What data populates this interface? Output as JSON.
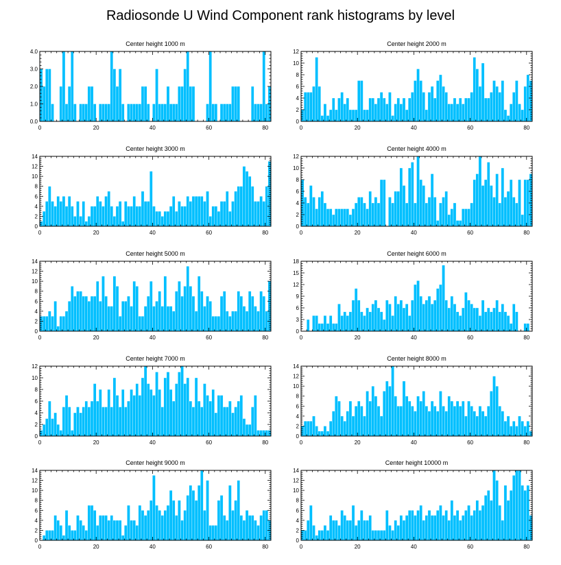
{
  "figure": {
    "title": "Radiosonde U Wind Component rank histograms by level",
    "bar_color": "#00bfff",
    "frame_color": "#000000"
  },
  "chart_data": [
    {
      "type": "bar",
      "title": "Center height 1000 m",
      "xlim": [
        0,
        82
      ],
      "ylim": [
        0,
        4
      ],
      "x_ticks": [
        0,
        20,
        40,
        60,
        80
      ],
      "x_tick_labels": [
        "0",
        "20",
        "40",
        "60",
        "80"
      ],
      "y_ticks": [
        0,
        1,
        2,
        3,
        4
      ],
      "y_tick_labels": [
        "0.0",
        "1.0",
        "2.0",
        "3.0",
        "4.0"
      ],
      "values": [
        3,
        2,
        3,
        3,
        1,
        0,
        0,
        2,
        4,
        1,
        2,
        4,
        1,
        0,
        1,
        1,
        1,
        2,
        2,
        1,
        0,
        1,
        1,
        1,
        1,
        4,
        3,
        2,
        3,
        1,
        0,
        1,
        1,
        1,
        1,
        1,
        2,
        2,
        1,
        0,
        1,
        3,
        1,
        1,
        1,
        2,
        1,
        1,
        1,
        2,
        2,
        3,
        4,
        2,
        2,
        0,
        0,
        0,
        0,
        1,
        4,
        1,
        1,
        0,
        1,
        1,
        1,
        1,
        2,
        2,
        2,
        0,
        0,
        0,
        0,
        2,
        1,
        1,
        1,
        4,
        1,
        2
      ]
    },
    {
      "type": "bar",
      "title": "Center height 2000 m",
      "xlim": [
        0,
        82
      ],
      "ylim": [
        0,
        12
      ],
      "x_ticks": [
        0,
        20,
        40,
        60,
        80
      ],
      "x_tick_labels": [
        "0",
        "20",
        "40",
        "60",
        "80"
      ],
      "y_ticks": [
        0,
        2,
        4,
        6,
        8,
        10,
        12
      ],
      "y_tick_labels": [
        "0",
        "2",
        "4",
        "6",
        "8",
        "10",
        "12"
      ],
      "values": [
        2,
        5,
        5,
        5,
        6,
        11,
        6,
        1,
        3,
        1,
        2,
        4,
        2,
        4,
        5,
        3,
        4,
        2,
        2,
        2,
        7,
        7,
        2,
        2,
        4,
        4,
        3,
        4,
        5,
        4,
        3,
        5,
        1,
        3,
        4,
        3,
        4,
        2,
        4,
        5,
        7,
        9,
        7,
        5,
        2,
        5,
        6,
        4,
        7,
        8,
        6,
        5,
        3,
        3,
        4,
        3,
        4,
        3,
        4,
        4,
        5,
        11,
        9,
        6,
        10,
        4,
        4,
        5,
        7,
        6,
        5,
        7,
        2,
        1,
        3,
        5,
        7,
        3,
        2,
        6,
        8,
        7
      ]
    },
    {
      "type": "bar",
      "title": "Center height 3000 m",
      "xlim": [
        0,
        82
      ],
      "ylim": [
        0,
        14
      ],
      "x_ticks": [
        0,
        20,
        40,
        60,
        80
      ],
      "x_tick_labels": [
        "0",
        "20",
        "40",
        "60",
        "80"
      ],
      "y_ticks": [
        0,
        2,
        4,
        6,
        8,
        10,
        12,
        14
      ],
      "y_tick_labels": [
        "0",
        "2",
        "4",
        "6",
        "8",
        "10",
        "12",
        "14"
      ],
      "values": [
        1,
        3,
        5,
        8,
        5,
        4,
        6,
        5,
        6,
        4,
        6,
        4,
        2,
        5,
        2,
        5,
        1,
        2,
        4,
        4,
        6,
        5,
        4,
        6,
        7,
        4,
        2,
        4,
        5,
        1,
        5,
        4,
        4,
        6,
        4,
        4,
        7,
        5,
        5,
        11,
        4,
        3,
        3,
        2,
        3,
        3,
        4,
        6,
        3,
        5,
        4,
        4,
        6,
        5,
        6,
        6,
        6,
        6,
        5,
        7,
        2,
        4,
        4,
        3,
        5,
        5,
        7,
        3,
        5,
        7,
        8,
        8,
        12,
        11,
        10,
        8,
        5,
        5,
        6,
        5,
        8,
        13
      ]
    },
    {
      "type": "bar",
      "title": "Center height 4000 m",
      "xlim": [
        0,
        82
      ],
      "ylim": [
        0,
        12
      ],
      "x_ticks": [
        0,
        20,
        40,
        60,
        80
      ],
      "x_tick_labels": [
        "0",
        "20",
        "40",
        "60",
        "80"
      ],
      "y_ticks": [
        0,
        2,
        4,
        6,
        8,
        10,
        12
      ],
      "y_tick_labels": [
        "0",
        "2",
        "4",
        "6",
        "8",
        "10",
        "12"
      ],
      "values": [
        8,
        5,
        4,
        7,
        5,
        3,
        5,
        6,
        4,
        3,
        3,
        2,
        3,
        3,
        3,
        3,
        3,
        2,
        3,
        4,
        5,
        5,
        4,
        3,
        6,
        4,
        5,
        4,
        8,
        8,
        0,
        5,
        4,
        6,
        6,
        10,
        7,
        4,
        10,
        11,
        4,
        12,
        8,
        7,
        4,
        5,
        9,
        5,
        1,
        4,
        5,
        6,
        2,
        3,
        4,
        1,
        1,
        3,
        3,
        3,
        4,
        8,
        9,
        12,
        7,
        8,
        11,
        7,
        5,
        9,
        4,
        10,
        5,
        6,
        8,
        5,
        4,
        8,
        2,
        8,
        8,
        9
      ]
    },
    {
      "type": "bar",
      "title": "Center height 5000 m",
      "xlim": [
        0,
        82
      ],
      "ylim": [
        0,
        14
      ],
      "x_ticks": [
        0,
        20,
        40,
        60,
        80
      ],
      "x_tick_labels": [
        "0",
        "20",
        "40",
        "60",
        "80"
      ],
      "y_ticks": [
        0,
        2,
        4,
        6,
        8,
        10,
        12,
        14
      ],
      "y_tick_labels": [
        "0",
        "2",
        "4",
        "6",
        "8",
        "10",
        "12",
        "14"
      ],
      "values": [
        3,
        3,
        3,
        4,
        3,
        6,
        1,
        3,
        3,
        4,
        6,
        9,
        7,
        8,
        8,
        7,
        7,
        6,
        7,
        7,
        10,
        6,
        11,
        7,
        5,
        5,
        11,
        9,
        3,
        6,
        6,
        7,
        5,
        10,
        9,
        3,
        3,
        5,
        7,
        10,
        5,
        6,
        8,
        5,
        11,
        5,
        5,
        4,
        8,
        10,
        7,
        9,
        13,
        9,
        7,
        4,
        11,
        8,
        5,
        7,
        6,
        3,
        3,
        3,
        7,
        8,
        4,
        3,
        4,
        4,
        8,
        7,
        5,
        4,
        8,
        7,
        5,
        4,
        8,
        7,
        4,
        10
      ]
    },
    {
      "type": "bar",
      "title": "Center height 6000 m",
      "xlim": [
        0,
        82
      ],
      "ylim": [
        0,
        18
      ],
      "x_ticks": [
        0,
        20,
        40,
        60,
        80
      ],
      "x_tick_labels": [
        "0",
        "20",
        "40",
        "60",
        "80"
      ],
      "y_ticks": [
        0,
        3,
        6,
        9,
        12,
        15,
        18
      ],
      "y_tick_labels": [
        "0",
        "3",
        "6",
        "9",
        "12",
        "15",
        "18"
      ],
      "values": [
        0,
        0,
        3,
        0,
        4,
        4,
        2,
        2,
        4,
        2,
        4,
        2,
        2,
        7,
        4,
        5,
        4,
        5,
        8,
        11,
        8,
        5,
        4,
        6,
        5,
        7,
        8,
        6,
        5,
        3,
        8,
        7,
        4,
        9,
        7,
        8,
        6,
        7,
        4,
        8,
        12,
        13,
        9,
        7,
        8,
        9,
        7,
        8,
        11,
        12,
        17,
        8,
        6,
        9,
        7,
        5,
        4,
        6,
        10,
        8,
        7,
        6,
        6,
        4,
        8,
        5,
        6,
        5,
        6,
        8,
        5,
        7,
        5,
        4,
        2,
        7,
        5,
        0,
        0,
        2,
        2,
        0
      ]
    },
    {
      "type": "bar",
      "title": "Center height 7000 m",
      "xlim": [
        0,
        82
      ],
      "ylim": [
        0,
        12
      ],
      "x_ticks": [
        0,
        20,
        40,
        60,
        80
      ],
      "x_tick_labels": [
        "0",
        "20",
        "40",
        "60",
        "80"
      ],
      "y_ticks": [
        0,
        2,
        4,
        6,
        8,
        10,
        12
      ],
      "y_tick_labels": [
        "0",
        "2",
        "4",
        "6",
        "8",
        "10",
        "12"
      ],
      "values": [
        1,
        2,
        3,
        6,
        3,
        4,
        2,
        1,
        5,
        7,
        5,
        1,
        4,
        5,
        4,
        5,
        6,
        5,
        6,
        9,
        6,
        8,
        5,
        5,
        8,
        5,
        10,
        7,
        5,
        8,
        5,
        6,
        8,
        7,
        9,
        7,
        10,
        12,
        9,
        8,
        7,
        11,
        8,
        5,
        10,
        11,
        8,
        6,
        9,
        11,
        12,
        9,
        10,
        6,
        5,
        10,
        6,
        5,
        9,
        7,
        6,
        8,
        4,
        7,
        7,
        5,
        5,
        6,
        4,
        5,
        6,
        7,
        3,
        2,
        2,
        5,
        7,
        1,
        1,
        1,
        1,
        1
      ]
    },
    {
      "type": "bar",
      "title": "Center height 8000 m",
      "xlim": [
        0,
        82
      ],
      "ylim": [
        0,
        14
      ],
      "x_ticks": [
        0,
        20,
        40,
        60,
        80
      ],
      "x_tick_labels": [
        "0",
        "20",
        "40",
        "60",
        "80"
      ],
      "y_ticks": [
        0,
        2,
        4,
        6,
        8,
        10,
        12,
        14
      ],
      "y_tick_labels": [
        "0",
        "2",
        "4",
        "6",
        "8",
        "10",
        "12",
        "14"
      ],
      "values": [
        2,
        3,
        3,
        3,
        4,
        2,
        1,
        1,
        2,
        1,
        3,
        5,
        8,
        7,
        4,
        3,
        5,
        7,
        4,
        6,
        7,
        6,
        4,
        9,
        7,
        10,
        8,
        6,
        4,
        9,
        11,
        10,
        14,
        8,
        6,
        6,
        11,
        8,
        7,
        6,
        5,
        8,
        7,
        9,
        6,
        5,
        7,
        6,
        5,
        9,
        6,
        5,
        8,
        7,
        6,
        7,
        6,
        7,
        4,
        7,
        6,
        5,
        4,
        6,
        5,
        4,
        6,
        9,
        12,
        10,
        6,
        5,
        3,
        4,
        2,
        3,
        2,
        4,
        3,
        2,
        3,
        1
      ]
    },
    {
      "type": "bar",
      "title": "Center height 9000 m",
      "xlim": [
        0,
        82
      ],
      "ylim": [
        0,
        14
      ],
      "x_ticks": [
        0,
        20,
        40,
        60,
        80
      ],
      "x_tick_labels": [
        "0",
        "20",
        "40",
        "60",
        "80"
      ],
      "y_ticks": [
        0,
        2,
        4,
        6,
        8,
        10,
        12,
        14
      ],
      "y_tick_labels": [
        "0",
        "2",
        "4",
        "6",
        "8",
        "10",
        "12",
        "14"
      ],
      "values": [
        0,
        1,
        2,
        2,
        2,
        5,
        4,
        3,
        1,
        6,
        3,
        2,
        2,
        5,
        4,
        3,
        2,
        7,
        7,
        6,
        3,
        5,
        5,
        5,
        4,
        5,
        4,
        4,
        4,
        1,
        3,
        7,
        4,
        4,
        3,
        7,
        6,
        5,
        6,
        8,
        13,
        7,
        6,
        5,
        6,
        7,
        10,
        8,
        5,
        8,
        4,
        6,
        9,
        11,
        10,
        8,
        11,
        14,
        6,
        12,
        3,
        3,
        3,
        8,
        9,
        5,
        4,
        11,
        6,
        8,
        12,
        5,
        4,
        6,
        5,
        5,
        4,
        3,
        5,
        6,
        6,
        4
      ]
    },
    {
      "type": "bar",
      "title": "Center height 10000 m",
      "xlim": [
        0,
        82
      ],
      "ylim": [
        0,
        14
      ],
      "x_ticks": [
        0,
        20,
        40,
        60,
        80
      ],
      "x_tick_labels": [
        "0",
        "20",
        "40",
        "60",
        "80"
      ],
      "y_ticks": [
        0,
        2,
        4,
        6,
        8,
        10,
        12,
        14
      ],
      "y_tick_labels": [
        "0",
        "2",
        "4",
        "6",
        "8",
        "10",
        "12",
        "14"
      ],
      "values": [
        2,
        2,
        4,
        7,
        3,
        1,
        2,
        2,
        3,
        2,
        5,
        4,
        4,
        3,
        6,
        5,
        4,
        4,
        7,
        3,
        4,
        6,
        4,
        4,
        5,
        2,
        2,
        2,
        2,
        2,
        6,
        3,
        2,
        4,
        3,
        5,
        4,
        5,
        6,
        6,
        5,
        6,
        7,
        4,
        5,
        6,
        5,
        5,
        6,
        7,
        5,
        6,
        4,
        8,
        5,
        6,
        4,
        5,
        6,
        7,
        5,
        6,
        8,
        6,
        7,
        9,
        10,
        8,
        14,
        12,
        7,
        4,
        11,
        8,
        10,
        13,
        14,
        14,
        11,
        10,
        11,
        5
      ]
    }
  ]
}
